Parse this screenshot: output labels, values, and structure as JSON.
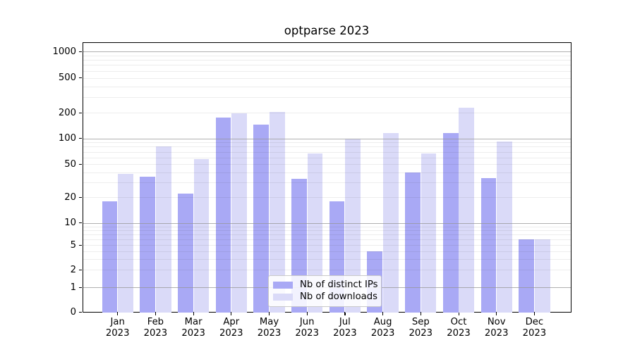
{
  "title": "optparse 2023",
  "chart_data": {
    "type": "bar",
    "title": "optparse 2023",
    "x_months": [
      "Jan",
      "Feb",
      "Mar",
      "Apr",
      "May",
      "Jun",
      "Jul",
      "Aug",
      "Sep",
      "Oct",
      "Nov",
      "Dec"
    ],
    "x_year": "2023",
    "y_ticks": [
      0,
      1,
      2,
      5,
      10,
      20,
      50,
      100,
      200,
      500,
      1000
    ],
    "y_scale": "symlog",
    "ylim": [
      0,
      1000
    ],
    "grid": "horizontal major (1,10,100,1000) and minor log subdivisions, drawn over bars",
    "legend_position": "lower center",
    "series": [
      {
        "name": "Nb of distinct IPs",
        "color": "#a9a9f5",
        "values": [
          18,
          35,
          22,
          175,
          145,
          33,
          18,
          4,
          40,
          115,
          34,
          6
        ]
      },
      {
        "name": "Nb of downloads",
        "color": "#dadaf8",
        "values": [
          38,
          80,
          57,
          195,
          205,
          67,
          100,
          115,
          67,
          228,
          92,
          6
        ]
      }
    ],
    "colors": {
      "grid_major": "#b0b0b0",
      "axis": "#000000",
      "background": "#ffffff"
    }
  }
}
